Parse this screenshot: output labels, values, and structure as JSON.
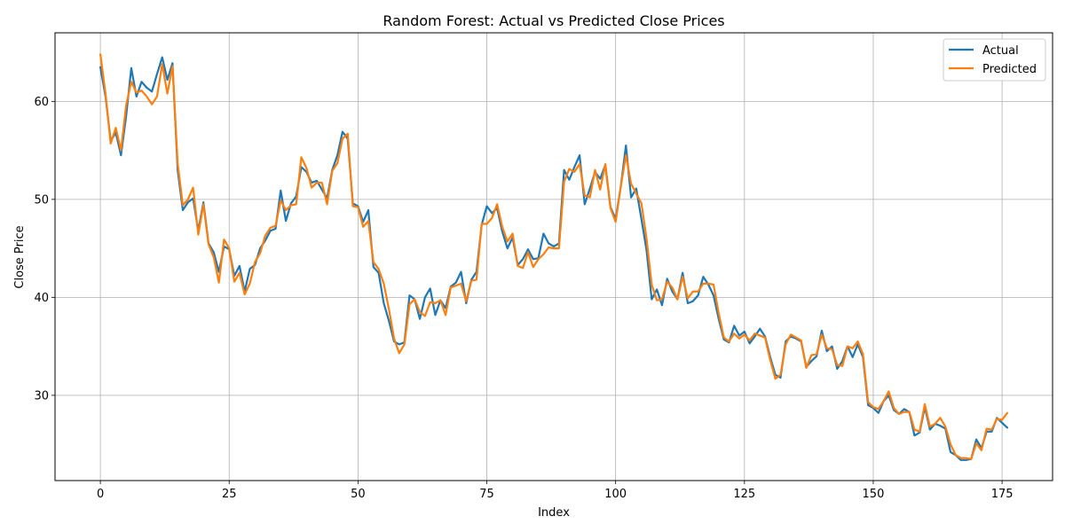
{
  "chart_data": {
    "type": "line",
    "title": "Random Forest: Actual vs Predicted Close Prices",
    "xlabel": "Index",
    "ylabel": "Close Price",
    "xlim": [
      -8.8,
      184.8
    ],
    "ylim": [
      21.3,
      67.0
    ],
    "xticks": [
      0,
      25,
      50,
      75,
      100,
      125,
      150,
      175
    ],
    "yticks": [
      30,
      40,
      50,
      60
    ],
    "grid": true,
    "legend": "top-right",
    "series": [
      {
        "name": "Actual",
        "color": "#1f77b4",
        "values": [
          63.5,
          60.5,
          56.0,
          56.8,
          54.5,
          58.5,
          63.4,
          60.5,
          62.0,
          61.4,
          61.0,
          62.8,
          64.5,
          62.2,
          63.9,
          53.0,
          48.9,
          49.7,
          50.1,
          46.8,
          49.7,
          45.5,
          44.6,
          42.6,
          45.2,
          44.9,
          42.2,
          43.2,
          40.6,
          42.9,
          43.3,
          45.0,
          45.8,
          46.8,
          47.0,
          50.9,
          47.8,
          49.6,
          50.3,
          53.3,
          52.8,
          51.7,
          51.9,
          51.0,
          50.1,
          53.0,
          54.5,
          56.9,
          56.2,
          49.6,
          49.3,
          47.7,
          48.9,
          43.1,
          42.5,
          39.4,
          37.6,
          35.5,
          35.2,
          35.4,
          40.2,
          39.8,
          37.8,
          40.0,
          40.9,
          38.2,
          39.7,
          38.9,
          41.1,
          41.5,
          42.6,
          39.4,
          41.8,
          42.6,
          47.4,
          49.3,
          48.6,
          49.1,
          46.7,
          45.0,
          46.1,
          43.3,
          43.9,
          44.9,
          43.9,
          44.0,
          46.5,
          45.5,
          45.2,
          45.5,
          53.0,
          52.0,
          53.3,
          54.5,
          49.5,
          51.1,
          52.8,
          52.1,
          53.5,
          49.2,
          48.0,
          51.3,
          55.5,
          50.2,
          51.1,
          48.0,
          44.8,
          39.8,
          40.8,
          39.2,
          41.9,
          40.6,
          39.8,
          42.5,
          39.4,
          39.6,
          40.2,
          42.1,
          41.3,
          40.2,
          37.8,
          35.7,
          35.4,
          37.1,
          36.1,
          36.5,
          35.3,
          36.0,
          36.8,
          36.0,
          33.9,
          32.1,
          31.8,
          35.5,
          36.0,
          35.8,
          35.5,
          32.9,
          33.5,
          34.0,
          36.6,
          34.5,
          35.0,
          32.7,
          33.5,
          35.0,
          33.9,
          35.2,
          33.9,
          29.0,
          28.7,
          28.2,
          29.4,
          30.0,
          28.5,
          28.1,
          28.6,
          28.3,
          25.9,
          26.2,
          28.8,
          26.5,
          27.1,
          26.9,
          26.6,
          24.2,
          23.9,
          23.4,
          23.4,
          23.5,
          25.5,
          24.6,
          26.3,
          26.3,
          27.7,
          27.2,
          26.7
        ]
      },
      {
        "name": "Predicted",
        "color": "#ff7f0e",
        "values": [
          64.8,
          60.8,
          55.7,
          57.3,
          55.0,
          59.6,
          62.0,
          60.9,
          61.1,
          60.5,
          59.7,
          60.5,
          63.8,
          60.8,
          63.6,
          53.7,
          49.4,
          50.0,
          51.2,
          46.4,
          49.5,
          45.4,
          44.1,
          41.5,
          45.9,
          45.0,
          41.6,
          42.5,
          40.3,
          41.4,
          43.6,
          44.5,
          46.3,
          47.1,
          47.3,
          49.9,
          48.9,
          49.4,
          49.5,
          54.3,
          53.2,
          51.2,
          51.7,
          51.7,
          49.5,
          52.9,
          53.7,
          56.2,
          56.7,
          49.3,
          49.2,
          47.2,
          47.8,
          43.6,
          42.9,
          41.4,
          38.8,
          35.8,
          34.3,
          35.2,
          39.3,
          39.8,
          38.5,
          38.1,
          39.5,
          39.4,
          39.7,
          38.2,
          41.0,
          41.2,
          41.4,
          39.6,
          41.7,
          41.8,
          47.5,
          47.5,
          48.1,
          49.5,
          47.2,
          45.7,
          46.5,
          43.2,
          43.0,
          44.6,
          43.1,
          43.9,
          44.4,
          45.1,
          45.0,
          45.0,
          51.8,
          53.1,
          52.8,
          53.6,
          50.4,
          50.2,
          53.0,
          51.0,
          53.6,
          49.1,
          47.7,
          51.3,
          54.5,
          51.6,
          50.6,
          49.6,
          46.0,
          41.3,
          39.7,
          39.8,
          41.6,
          41.0,
          39.8,
          42.1,
          39.9,
          40.6,
          40.6,
          41.4,
          41.4,
          41.3,
          38.4,
          35.9,
          35.5,
          36.3,
          35.8,
          36.2,
          35.6,
          36.3,
          36.1,
          35.9,
          33.6,
          31.7,
          32.1,
          35.2,
          36.2,
          35.9,
          35.6,
          32.8,
          34.1,
          34.2,
          36.2,
          34.8,
          34.7,
          33.1,
          33.0,
          35.0,
          34.8,
          35.5,
          34.2,
          29.3,
          28.8,
          28.6,
          29.4,
          30.4,
          28.7,
          28.1,
          28.3,
          28.3,
          26.5,
          26.3,
          29.1,
          26.8,
          27.1,
          27.7,
          26.8,
          25.0,
          23.9,
          23.6,
          23.6,
          23.5,
          25.1,
          24.4,
          26.6,
          26.5,
          27.6,
          27.5,
          28.2
        ]
      }
    ]
  }
}
